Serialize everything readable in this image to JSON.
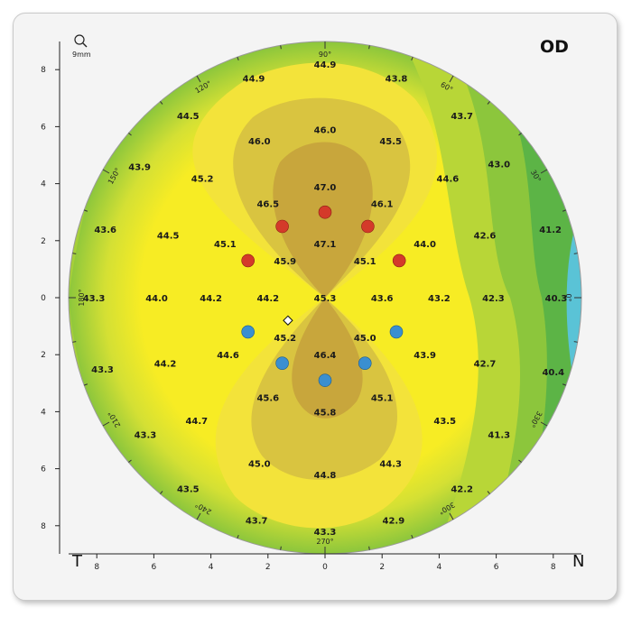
{
  "chart_data": {
    "type": "heatmap",
    "eye_label": "OD",
    "left_label": "T",
    "right_label": "N",
    "zoom_label": "9mm",
    "colors": {
      "cyan": "#5ac3d6",
      "green": "#5cb446",
      "lightgreen": "#a6cf3a",
      "yellowgreen": "#d4e034",
      "yellow": "#f7ec24",
      "lightyellow": "#f3e33a",
      "mustard": "#d9c440",
      "brown": "#c8a63c",
      "red": "#d43a2a",
      "blue": "#3a8fd0"
    },
    "x_ticks": [
      "8",
      "6",
      "4",
      "2",
      "0",
      "2",
      "4",
      "6",
      "8"
    ],
    "y_ticks": [
      "8",
      "6",
      "4",
      "2",
      "0",
      "2",
      "4",
      "6",
      "8"
    ],
    "angle_labels": [
      {
        "deg": 90,
        "text": "90°"
      },
      {
        "deg": 60,
        "text": "60°"
      },
      {
        "deg": 30,
        "text": "30°"
      },
      {
        "deg": 0,
        "text": "0°"
      },
      {
        "deg": 330,
        "text": "330°"
      },
      {
        "deg": 300,
        "text": "300°"
      },
      {
        "deg": 270,
        "text": "270°"
      },
      {
        "deg": 240,
        "text": "240°"
      },
      {
        "deg": 210,
        "text": "210°"
      },
      {
        "deg": 180,
        "text": "180°"
      },
      {
        "deg": 150,
        "text": "150°"
      },
      {
        "deg": 120,
        "text": "120°"
      }
    ],
    "values": [
      {
        "x": 0,
        "y": 8.2,
        "v": "44.9"
      },
      {
        "x": -2.5,
        "y": 7.7,
        "v": "44.9"
      },
      {
        "x": 2.5,
        "y": 7.7,
        "v": "43.8"
      },
      {
        "x": -4.8,
        "y": 6.4,
        "v": "44.5"
      },
      {
        "x": 4.8,
        "y": 6.4,
        "v": "43.7"
      },
      {
        "x": 0,
        "y": 5.9,
        "v": "46.0"
      },
      {
        "x": -2.3,
        "y": 5.5,
        "v": "46.0"
      },
      {
        "x": 2.3,
        "y": 5.5,
        "v": "45.5"
      },
      {
        "x": -6.5,
        "y": 4.6,
        "v": "43.9"
      },
      {
        "x": 6.1,
        "y": 4.7,
        "v": "43.0"
      },
      {
        "x": -4.3,
        "y": 4.2,
        "v": "45.2"
      },
      {
        "x": 4.3,
        "y": 4.2,
        "v": "44.6"
      },
      {
        "x": 0,
        "y": 3.9,
        "v": "47.0"
      },
      {
        "x": -2.0,
        "y": 3.3,
        "v": "46.5"
      },
      {
        "x": 2.0,
        "y": 3.3,
        "v": "46.1"
      },
      {
        "x": -7.7,
        "y": 2.4,
        "v": "43.6"
      },
      {
        "x": 7.9,
        "y": 2.4,
        "v": "41.2"
      },
      {
        "x": -5.5,
        "y": 2.2,
        "v": "44.5"
      },
      {
        "x": 5.6,
        "y": 2.2,
        "v": "42.6"
      },
      {
        "x": 0,
        "y": 1.9,
        "v": "47.1"
      },
      {
        "x": -3.5,
        "y": 1.9,
        "v": "45.1"
      },
      {
        "x": 3.5,
        "y": 1.9,
        "v": "44.0"
      },
      {
        "x": -1.4,
        "y": 1.3,
        "v": "45.9"
      },
      {
        "x": 1.4,
        "y": 1.3,
        "v": "45.1"
      },
      {
        "x": -8.1,
        "y": 0,
        "v": "43.3"
      },
      {
        "x": -5.9,
        "y": 0,
        "v": "44.0"
      },
      {
        "x": -4.0,
        "y": 0,
        "v": "44.2"
      },
      {
        "x": -2.0,
        "y": 0,
        "v": "44.2"
      },
      {
        "x": 0,
        "y": 0,
        "v": "45.3"
      },
      {
        "x": 2.0,
        "y": 0,
        "v": "43.6"
      },
      {
        "x": 4.0,
        "y": 0,
        "v": "43.2"
      },
      {
        "x": 5.9,
        "y": 0,
        "v": "42.3"
      },
      {
        "x": 8.1,
        "y": 0,
        "v": "40.3"
      },
      {
        "x": -1.4,
        "y": -1.4,
        "v": "45.2"
      },
      {
        "x": 1.4,
        "y": -1.4,
        "v": "45.0"
      },
      {
        "x": -3.4,
        "y": -2.0,
        "v": "44.6"
      },
      {
        "x": 3.5,
        "y": -2.0,
        "v": "43.9"
      },
      {
        "x": 0,
        "y": -2.0,
        "v": "46.4"
      },
      {
        "x": -5.6,
        "y": -2.3,
        "v": "44.2"
      },
      {
        "x": 5.6,
        "y": -2.3,
        "v": "42.7"
      },
      {
        "x": -7.8,
        "y": -2.5,
        "v": "43.3"
      },
      {
        "x": 8.0,
        "y": -2.6,
        "v": "40.4"
      },
      {
        "x": -2.0,
        "y": -3.5,
        "v": "45.6"
      },
      {
        "x": 2.0,
        "y": -3.5,
        "v": "45.1"
      },
      {
        "x": 0,
        "y": -4.0,
        "v": "45.8"
      },
      {
        "x": -4.5,
        "y": -4.3,
        "v": "44.7"
      },
      {
        "x": 4.2,
        "y": -4.3,
        "v": "43.5"
      },
      {
        "x": -6.3,
        "y": -4.8,
        "v": "43.3"
      },
      {
        "x": 6.1,
        "y": -4.8,
        "v": "41.3"
      },
      {
        "x": -2.3,
        "y": -5.8,
        "v": "45.0"
      },
      {
        "x": 2.3,
        "y": -5.8,
        "v": "44.3"
      },
      {
        "x": 0,
        "y": -6.2,
        "v": "44.8"
      },
      {
        "x": -4.8,
        "y": -6.7,
        "v": "43.5"
      },
      {
        "x": 4.8,
        "y": -6.7,
        "v": "42.2"
      },
      {
        "x": -2.4,
        "y": -7.8,
        "v": "43.7"
      },
      {
        "x": 2.4,
        "y": -7.8,
        "v": "42.9"
      },
      {
        "x": 0,
        "y": -8.2,
        "v": "43.3"
      }
    ],
    "red_points": [
      {
        "x": 0,
        "y": 3.0
      },
      {
        "x": -1.5,
        "y": 2.5
      },
      {
        "x": 1.5,
        "y": 2.5
      },
      {
        "x": -2.7,
        "y": 1.3
      },
      {
        "x": 2.6,
        "y": 1.3
      }
    ],
    "blue_points": [
      {
        "x": -2.7,
        "y": -1.2
      },
      {
        "x": 2.5,
        "y": -1.2
      },
      {
        "x": -1.5,
        "y": -2.3
      },
      {
        "x": 1.4,
        "y": -2.3
      },
      {
        "x": 0,
        "y": -2.9
      }
    ],
    "marker": {
      "x": -1.3,
      "y": -0.8
    }
  }
}
